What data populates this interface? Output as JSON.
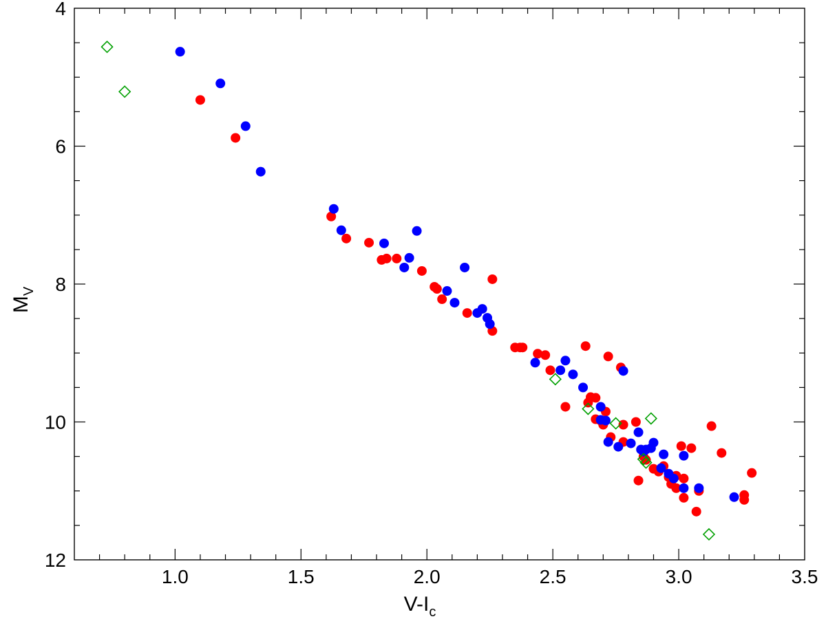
{
  "chart_data": {
    "type": "scatter",
    "title": "",
    "xlabel": "V-I",
    "xlabel_subscript": "c",
    "ylabel": "M",
    "ylabel_subscript": "V",
    "xlim": [
      0.6,
      3.5
    ],
    "ylim": [
      4,
      12
    ],
    "y_inverted": true,
    "grid": false,
    "x_ticks": [
      1.0,
      1.5,
      2.0,
      2.5,
      3.0,
      3.5
    ],
    "x_tick_labels": [
      "1.0",
      "1.5",
      "2.0",
      "2.5",
      "3.0",
      "3.5"
    ],
    "y_ticks": [
      4,
      6,
      8,
      10,
      12
    ],
    "y_tick_labels": [
      "4",
      "6",
      "8",
      "10",
      "12"
    ],
    "series": [
      {
        "color": "#ff0000",
        "marker": "filled-circle",
        "points": [
          [
            1.1,
            5.33
          ],
          [
            1.24,
            5.88
          ],
          [
            1.62,
            7.02
          ],
          [
            1.68,
            7.34
          ],
          [
            1.77,
            7.4
          ],
          [
            1.82,
            7.65
          ],
          [
            1.84,
            7.63
          ],
          [
            1.88,
            7.63
          ],
          [
            1.98,
            7.81
          ],
          [
            2.03,
            8.04
          ],
          [
            2.04,
            8.07
          ],
          [
            2.06,
            8.22
          ],
          [
            2.16,
            8.42
          ],
          [
            2.26,
            7.93
          ],
          [
            2.26,
            8.68
          ],
          [
            2.35,
            8.92
          ],
          [
            2.37,
            8.92
          ],
          [
            2.38,
            8.92
          ],
          [
            2.44,
            9.01
          ],
          [
            2.47,
            9.03
          ],
          [
            2.49,
            9.25
          ],
          [
            2.55,
            9.78
          ],
          [
            2.63,
            8.9
          ],
          [
            2.64,
            9.72
          ],
          [
            2.65,
            9.64
          ],
          [
            2.67,
            9.65
          ],
          [
            2.67,
            9.96
          ],
          [
            2.69,
            9.98
          ],
          [
            2.7,
            10.04
          ],
          [
            2.71,
            9.85
          ],
          [
            2.72,
            9.05
          ],
          [
            2.73,
            10.22
          ],
          [
            2.77,
            9.21
          ],
          [
            2.78,
            10.04
          ],
          [
            2.78,
            10.29
          ],
          [
            2.83,
            10.0
          ],
          [
            2.84,
            10.85
          ],
          [
            2.86,
            10.5
          ],
          [
            2.87,
            10.55
          ],
          [
            2.9,
            10.68
          ],
          [
            2.92,
            10.72
          ],
          [
            2.94,
            10.64
          ],
          [
            2.96,
            10.8
          ],
          [
            2.97,
            10.9
          ],
          [
            2.99,
            10.96
          ],
          [
            2.99,
            10.78
          ],
          [
            3.01,
            10.35
          ],
          [
            3.02,
            10.82
          ],
          [
            3.02,
            11.1
          ],
          [
            3.05,
            10.38
          ],
          [
            3.07,
            11.3
          ],
          [
            3.08,
            11.0
          ],
          [
            3.13,
            10.06
          ],
          [
            3.17,
            10.45
          ],
          [
            3.26,
            11.06
          ],
          [
            3.26,
            11.13
          ],
          [
            3.29,
            10.74
          ]
        ]
      },
      {
        "color": "#0000ff",
        "marker": "filled-circle",
        "points": [
          [
            1.02,
            4.63
          ],
          [
            1.18,
            5.09
          ],
          [
            1.28,
            5.71
          ],
          [
            1.34,
            6.37
          ],
          [
            1.63,
            6.91
          ],
          [
            1.66,
            7.22
          ],
          [
            1.83,
            7.41
          ],
          [
            1.91,
            7.76
          ],
          [
            1.93,
            7.62
          ],
          [
            1.96,
            7.23
          ],
          [
            2.08,
            8.1
          ],
          [
            2.11,
            8.27
          ],
          [
            2.15,
            7.76
          ],
          [
            2.2,
            8.42
          ],
          [
            2.22,
            8.36
          ],
          [
            2.24,
            8.49
          ],
          [
            2.25,
            8.58
          ],
          [
            2.43,
            9.14
          ],
          [
            2.53,
            9.25
          ],
          [
            2.55,
            9.11
          ],
          [
            2.58,
            9.31
          ],
          [
            2.62,
            9.5
          ],
          [
            2.69,
            9.78
          ],
          [
            2.69,
            9.97
          ],
          [
            2.71,
            9.98
          ],
          [
            2.72,
            10.29
          ],
          [
            2.76,
            10.36
          ],
          [
            2.78,
            9.26
          ],
          [
            2.81,
            10.31
          ],
          [
            2.84,
            10.15
          ],
          [
            2.85,
            10.4
          ],
          [
            2.86,
            10.43
          ],
          [
            2.87,
            10.4
          ],
          [
            2.89,
            10.38
          ],
          [
            2.9,
            10.3
          ],
          [
            2.93,
            10.67
          ],
          [
            2.94,
            10.47
          ],
          [
            2.96,
            10.75
          ],
          [
            2.98,
            10.82
          ],
          [
            3.02,
            10.49
          ],
          [
            3.02,
            10.96
          ],
          [
            3.08,
            10.96
          ],
          [
            3.22,
            11.09
          ]
        ]
      },
      {
        "color": "#00a000",
        "marker": "open-diamond",
        "points": [
          [
            0.73,
            4.56
          ],
          [
            0.8,
            5.21
          ],
          [
            2.51,
            9.38
          ],
          [
            2.64,
            9.81
          ],
          [
            2.75,
            10.02
          ],
          [
            2.86,
            10.54
          ],
          [
            2.87,
            10.59
          ],
          [
            2.89,
            9.95
          ],
          [
            3.12,
            11.63
          ]
        ]
      }
    ]
  }
}
